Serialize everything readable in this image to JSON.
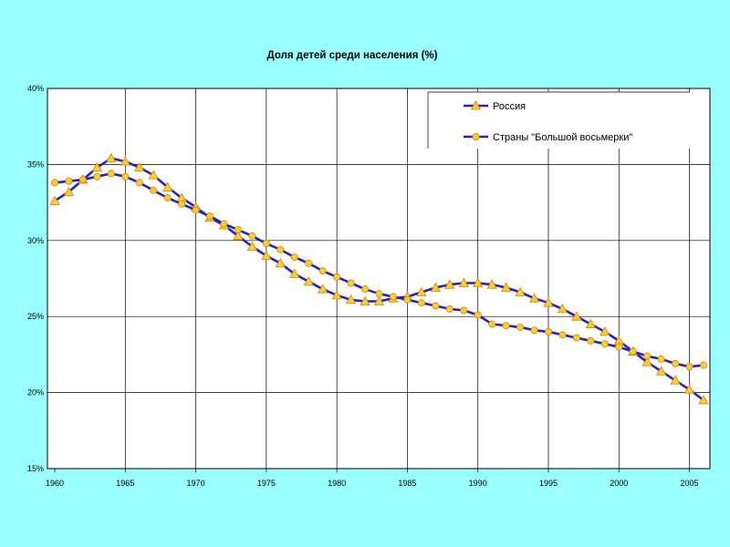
{
  "chart_data": {
    "type": "line",
    "title": "Доля детей среди населения (%)",
    "xlabel": "",
    "ylabel": "",
    "xlim": [
      1960,
      2006.5
    ],
    "ylim": [
      15,
      40
    ],
    "x_ticks": [
      1960,
      1965,
      1970,
      1975,
      1980,
      1985,
      1990,
      1995,
      2000,
      2005
    ],
    "y_ticks": [
      15,
      20,
      25,
      30,
      35,
      40
    ],
    "y_tick_labels": [
      "15%",
      "20%",
      "25%",
      "30%",
      "35%",
      "40%"
    ],
    "grid": true,
    "legend_position": "top-right",
    "colors": {
      "background": "#99ffff",
      "plot_area": "#ffffff",
      "line": "#2222cc",
      "marker": "#ffcc33",
      "marker_edge": "#cc8800",
      "grid": "#000000"
    },
    "x": [
      1960,
      1961,
      1962,
      1963,
      1964,
      1965,
      1966,
      1967,
      1968,
      1969,
      1970,
      1971,
      1972,
      1973,
      1974,
      1975,
      1976,
      1977,
      1978,
      1979,
      1980,
      1981,
      1982,
      1983,
      1984,
      1985,
      1986,
      1987,
      1988,
      1989,
      1990,
      1991,
      1992,
      1993,
      1994,
      1995,
      1996,
      1997,
      1998,
      1999,
      2000,
      2001,
      2002,
      2003,
      2004,
      2005,
      2006
    ],
    "series": [
      {
        "name": "Россия",
        "marker": "triangle",
        "values": [
          32.6,
          33.2,
          34.0,
          34.8,
          35.4,
          35.2,
          34.8,
          34.3,
          33.5,
          32.8,
          32.2,
          31.5,
          31.0,
          30.3,
          29.6,
          29.0,
          28.5,
          27.8,
          27.3,
          26.8,
          26.4,
          26.1,
          26.0,
          26.0,
          26.2,
          26.3,
          26.6,
          26.9,
          27.1,
          27.2,
          27.2,
          27.1,
          26.9,
          26.6,
          26.2,
          25.9,
          25.5,
          25.0,
          24.5,
          24.0,
          23.4,
          22.7,
          22.0,
          21.4,
          20.8,
          20.2,
          19.5
        ]
      },
      {
        "name": "Страны \"Большой восьмерки\"",
        "marker": "circle",
        "values": [
          33.8,
          33.9,
          34.0,
          34.2,
          34.4,
          34.2,
          33.8,
          33.3,
          32.8,
          32.4,
          32.0,
          31.6,
          31.1,
          30.7,
          30.3,
          29.8,
          29.4,
          28.9,
          28.5,
          28.0,
          27.6,
          27.2,
          26.8,
          26.5,
          26.3,
          26.1,
          25.9,
          25.7,
          25.5,
          25.4,
          25.1,
          24.5,
          24.4,
          24.3,
          24.1,
          24.0,
          23.8,
          23.6,
          23.4,
          23.2,
          23.0,
          22.7,
          22.4,
          22.2,
          21.9,
          21.7,
          21.8
        ]
      }
    ]
  }
}
